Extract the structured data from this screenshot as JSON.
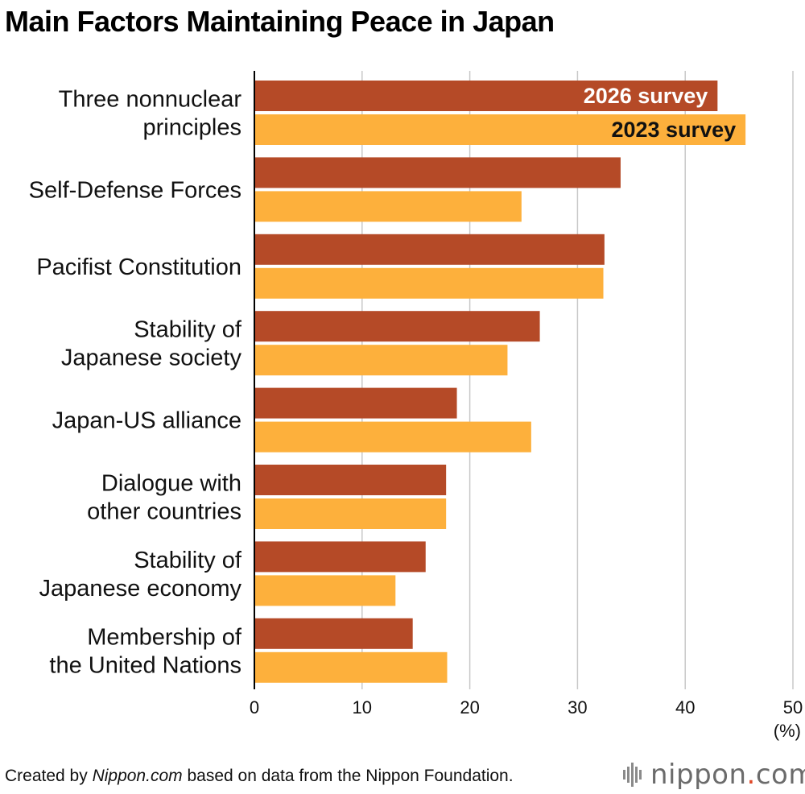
{
  "title": "Main Factors Maintaining Peace in Japan",
  "footer": {
    "prefix": "Created by ",
    "italic": "Nippon.com",
    "suffix": " based on data from the Nippon Foundation."
  },
  "logo": {
    "name": "nippon",
    "dot": ".",
    "tld": "com"
  },
  "colors": {
    "series_2026": "#b54a27",
    "series_2023": "#fdb03c",
    "grid": "#c8c8c8",
    "axis": "#000000"
  },
  "chart_data": {
    "type": "bar",
    "orientation": "horizontal",
    "categories": [
      [
        "Three nonnuclear",
        "principles"
      ],
      [
        "Self-Defense Forces"
      ],
      [
        "Pacifist Constitution"
      ],
      [
        "Stability of",
        "Japanese society"
      ],
      [
        "Japan-US alliance"
      ],
      [
        "Dialogue with",
        "other countries"
      ],
      [
        "Stability of",
        "Japanese economy"
      ],
      [
        "Membership of",
        "the United Nations"
      ]
    ],
    "series": [
      {
        "name": "2026 survey",
        "color": "#b54a27",
        "label_color": "#ffffff",
        "values": [
          43.0,
          34.0,
          32.5,
          26.5,
          18.8,
          17.8,
          15.9,
          14.7
        ]
      },
      {
        "name": "2023 survey",
        "color": "#fdb03c",
        "label_color": "#111111",
        "values": [
          45.6,
          24.8,
          32.4,
          23.5,
          25.7,
          17.8,
          13.1,
          17.9
        ]
      }
    ],
    "xlim": [
      0,
      50
    ],
    "xticks": [
      0,
      10,
      20,
      30,
      40,
      50
    ],
    "xunit": "(%)",
    "grid": true,
    "legend": "inside-first-bars"
  }
}
